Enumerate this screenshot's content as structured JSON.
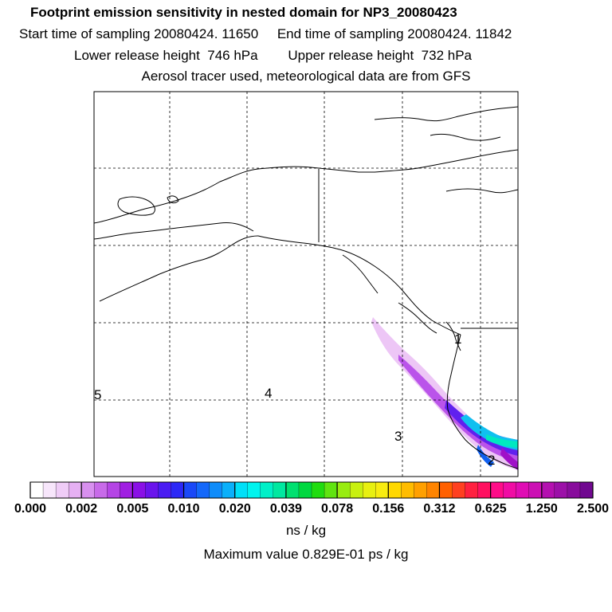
{
  "header": {
    "title": "Footprint emission sensitivity in nested domain for NP3_20080423",
    "line2": "Start time of sampling 20080424. 11650     End time of sampling 20080424. 11842",
    "line3": "Lower release height  746 hPa        Upper release height  732 hPa",
    "line4": "Aerosol tracer used, meteorological data are from GFS"
  },
  "map": {
    "labels": [
      {
        "text": "5",
        "name": "map-label-5"
      },
      {
        "text": "4",
        "name": "map-label-4"
      },
      {
        "text": "3",
        "name": "map-label-3"
      },
      {
        "text": "2",
        "name": "map-label-2"
      },
      {
        "text": "1",
        "name": "map-label-1"
      }
    ]
  },
  "chart_data": {
    "type": "heatmap",
    "title": "Footprint emission sensitivity in nested domain for NP3_20080423",
    "colorbar": {
      "tick_labels": [
        "0.000",
        "0.002",
        "0.005",
        "0.010",
        "0.020",
        "0.039",
        "0.078",
        "0.156",
        "0.312",
        "0.625",
        "1.250",
        "2.500"
      ],
      "units": "ns / kg",
      "colors": [
        "#ffffff",
        "#f7e6fb",
        "#efccf7",
        "#e6b0f3",
        "#d890ef",
        "#c86ae9",
        "#b545e5",
        "#a01fe2",
        "#8a10e6",
        "#6a14ec",
        "#4a1cf2",
        "#2c28f6",
        "#1a48f8",
        "#1468fa",
        "#0f8cfa",
        "#0ab0fa",
        "#00e0f8",
        "#00f4ee",
        "#00f0c8",
        "#00e8a0",
        "#00e070",
        "#00d840",
        "#20dc10",
        "#60e410",
        "#98ec10",
        "#c8f010",
        "#e8f010",
        "#f8ec10",
        "#ffd800",
        "#ffbc00",
        "#ffa000",
        "#ff8400",
        "#ff6000",
        "#ff4020",
        "#ff2040",
        "#ff1060",
        "#ff0c88",
        "#f00ca4",
        "#e00cb4",
        "#cc10b4",
        "#b410b0",
        "#9c10a8",
        "#880c9c",
        "#700890"
      ]
    },
    "max_value_text": "Maximum value  0.829E-01 ps / kg"
  }
}
